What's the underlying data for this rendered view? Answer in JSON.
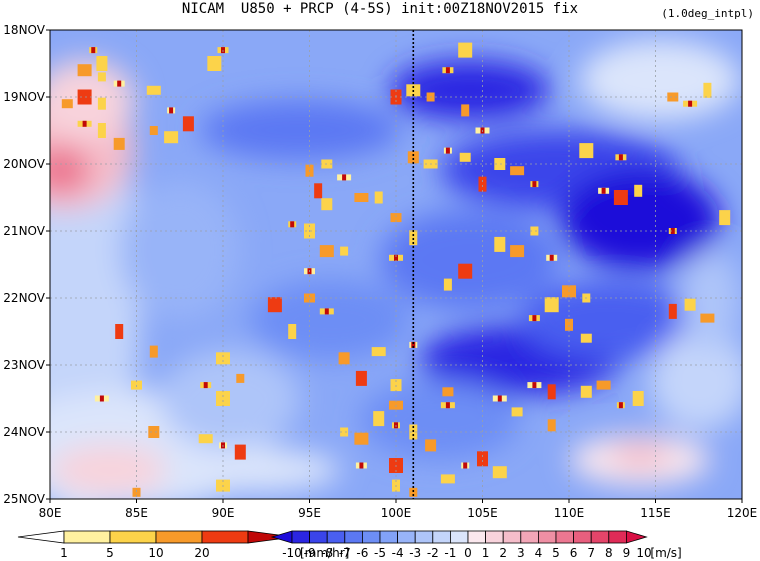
{
  "title": "NICAM  U850 + PRCP (4-5S) init:00Z18NOV2015 fix",
  "subtitle": "(1.0deg_intpl)",
  "chart_data": {
    "type": "heatmap",
    "x_ticks": [
      "80E",
      "85E",
      "90E",
      "95E",
      "100E",
      "105E",
      "110E",
      "115E",
      "120E"
    ],
    "x_values": [
      80,
      85,
      90,
      95,
      100,
      105,
      110,
      115,
      120
    ],
    "xlim": [
      80,
      120
    ],
    "y_ticks": [
      "18NOV",
      "19NOV",
      "20NOV",
      "21NOV",
      "22NOV",
      "23NOV",
      "24NOV",
      "25NOV"
    ],
    "y_values": [
      18,
      19,
      20,
      21,
      22,
      23,
      24,
      25
    ],
    "ylim": [
      18,
      25
    ],
    "grid": true,
    "reference_line_x": 101,
    "shading_field": "U850",
    "precip_field": "PRCP",
    "precip_colorbar": {
      "unit": "[mm/hr]",
      "ticks": [
        "1",
        "5",
        "10",
        "20"
      ],
      "colors": [
        "#ffffff",
        "#fff1a0",
        "#fcd34a",
        "#f79a2a",
        "#ee3b12",
        "#c00808"
      ]
    },
    "u_colorbar": {
      "unit": "[m/s]",
      "ticks": [
        "-10",
        "-9",
        "-8",
        "-7",
        "-6",
        "-5",
        "-4",
        "-3",
        "-2",
        "-1",
        "0",
        "1",
        "2",
        "3",
        "4",
        "5",
        "6",
        "7",
        "8",
        "9",
        "10"
      ],
      "colors": [
        "#1d0bd9",
        "#2b26e2",
        "#3a44ea",
        "#4a5ff0",
        "#5b78f3",
        "#6d8ef5",
        "#82a2f7",
        "#98b4f8",
        "#aec5f9",
        "#c4d5fa",
        "#dbe5fb",
        "#fbe8ee",
        "#f8d3dc",
        "#f5bdca",
        "#f2a6b7",
        "#ef8fa4",
        "#ec7791",
        "#e85f7e",
        "#e4456a",
        "#df2b57",
        "#d81044"
      ]
    },
    "precip_cells": [
      [
        82.5,
        18.3
      ],
      [
        83,
        18.5
      ],
      [
        82,
        18.6
      ],
      [
        83,
        18.7
      ],
      [
        84,
        18.8
      ],
      [
        82,
        19.0
      ],
      [
        83,
        19.1
      ],
      [
        81,
        19.1
      ],
      [
        82,
        19.4
      ],
      [
        83,
        19.5
      ],
      [
        84,
        19.7
      ],
      [
        86,
        18.9
      ],
      [
        87,
        19.2
      ],
      [
        88,
        19.4
      ],
      [
        87,
        19.6
      ],
      [
        86,
        19.5
      ],
      [
        90,
        18.3
      ],
      [
        89.5,
        18.5
      ],
      [
        95,
        20.1
      ],
      [
        96,
        20.0
      ],
      [
        97,
        20.2
      ],
      [
        95.5,
        20.4
      ],
      [
        96,
        20.6
      ],
      [
        98,
        20.5
      ],
      [
        94,
        20.9
      ],
      [
        95,
        21.0
      ],
      [
        96,
        21.3
      ],
      [
        97,
        21.3
      ],
      [
        95,
        21.6
      ],
      [
        93,
        22.1
      ],
      [
        99,
        20.5
      ],
      [
        100,
        20.8
      ],
      [
        100,
        21.4
      ],
      [
        101,
        21.1
      ],
      [
        101,
        19.9
      ],
      [
        102,
        20.0
      ],
      [
        103,
        19.8
      ],
      [
        100,
        19.0
      ],
      [
        101,
        18.9
      ],
      [
        102,
        19.0
      ],
      [
        103,
        18.6
      ],
      [
        104,
        18.3
      ],
      [
        104,
        19.2
      ],
      [
        104,
        19.9
      ],
      [
        105,
        19.5
      ],
      [
        105,
        20.3
      ],
      [
        106,
        20.0
      ],
      [
        107,
        20.1
      ],
      [
        108,
        20.3
      ],
      [
        106,
        21.2
      ],
      [
        107,
        21.3
      ],
      [
        108,
        21.0
      ],
      [
        109,
        21.4
      ],
      [
        104,
        21.6
      ],
      [
        103,
        21.8
      ],
      [
        95,
        22.0
      ],
      [
        96,
        22.2
      ],
      [
        94,
        22.5
      ],
      [
        97,
        22.9
      ],
      [
        99,
        22.8
      ],
      [
        101,
        22.7
      ],
      [
        98,
        23.2
      ],
      [
        90,
        22.9
      ],
      [
        91,
        23.2
      ],
      [
        89,
        23.3
      ],
      [
        90,
        23.5
      ],
      [
        86,
        22.8
      ],
      [
        85,
        23.3
      ],
      [
        83,
        23.5
      ],
      [
        84,
        22.5
      ],
      [
        100,
        23.3
      ],
      [
        100,
        23.6
      ],
      [
        100,
        23.9
      ],
      [
        99,
        23.8
      ],
      [
        98,
        24.1
      ],
      [
        97,
        24.0
      ],
      [
        98,
        24.5
      ],
      [
        100,
        24.5
      ],
      [
        100,
        24.8
      ],
      [
        103,
        23.4
      ],
      [
        103,
        23.6
      ],
      [
        101,
        24.0
      ],
      [
        102,
        24.2
      ],
      [
        103,
        24.7
      ],
      [
        104,
        24.5
      ],
      [
        105,
        24.4
      ],
      [
        106,
        24.6
      ],
      [
        101,
        24.9
      ],
      [
        108,
        22.3
      ],
      [
        109,
        22.1
      ],
      [
        110,
        22.4
      ],
      [
        111,
        22.6
      ],
      [
        108,
        23.3
      ],
      [
        109,
        23.4
      ],
      [
        111,
        23.4
      ],
      [
        112,
        23.3
      ],
      [
        113,
        23.6
      ],
      [
        114,
        23.5
      ],
      [
        110,
        21.9
      ],
      [
        111,
        22.0
      ],
      [
        112,
        20.4
      ],
      [
        113,
        20.5
      ],
      [
        114,
        20.4
      ],
      [
        116,
        19.0
      ],
      [
        117,
        19.1
      ],
      [
        118,
        18.9
      ],
      [
        86,
        24.0
      ],
      [
        89,
        24.1
      ],
      [
        90,
        24.2
      ],
      [
        91,
        24.3
      ],
      [
        90,
        24.8
      ],
      [
        85,
        24.9
      ],
      [
        113,
        19.9
      ],
      [
        111,
        19.8
      ],
      [
        109,
        23.9
      ],
      [
        107,
        23.7
      ],
      [
        106,
        23.5
      ],
      [
        116,
        22.2
      ],
      [
        117,
        22.1
      ],
      [
        118,
        22.3
      ],
      [
        116,
        21.0
      ],
      [
        119,
        20.8
      ]
    ]
  }
}
